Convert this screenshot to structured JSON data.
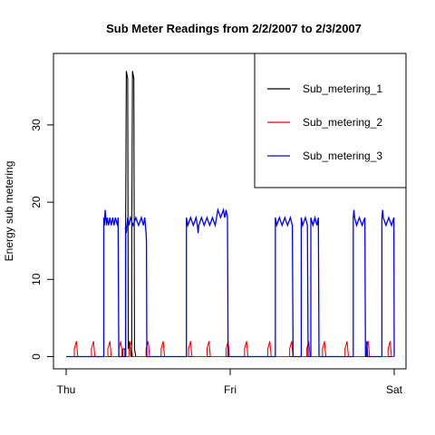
{
  "chart_data": {
    "type": "line",
    "title": "Sub Meter Readings from 2/2/2007 to 2/3/2007",
    "xlabel": "",
    "ylabel": "Energy sub metering",
    "x_ticks": [
      {
        "value": 0,
        "label": "Thu"
      },
      {
        "value": 24,
        "label": "Fri"
      },
      {
        "value": 48,
        "label": "Sat"
      }
    ],
    "x_unit": "hours since Thu 00:00",
    "xlim": [
      0,
      48
    ],
    "y_ticks": [
      0,
      10,
      20,
      30
    ],
    "ylim": [
      0,
      38
    ],
    "legend_position": "top-right",
    "grid": false,
    "series": [
      {
        "name": "Sub_metering_1",
        "color": "#000000",
        "points": [
          [
            0,
            0
          ],
          [
            8.3,
            0
          ],
          [
            8.3,
            1
          ],
          [
            8.6,
            1
          ],
          [
            8.6,
            0
          ],
          [
            8.7,
            0
          ],
          [
            8.7,
            16
          ],
          [
            8.8,
            37
          ],
          [
            9.0,
            36
          ],
          [
            9.1,
            1
          ],
          [
            9.2,
            2
          ],
          [
            9.4,
            1
          ],
          [
            9.5,
            0
          ],
          [
            9.6,
            0
          ],
          [
            9.6,
            16
          ],
          [
            9.7,
            37
          ],
          [
            9.9,
            36
          ],
          [
            10.0,
            1
          ],
          [
            10.2,
            0
          ],
          [
            48,
            0
          ]
        ]
      },
      {
        "name": "Sub_metering_2",
        "color": "#ff0000",
        "points": [
          [
            0,
            0
          ],
          [
            1.2,
            0
          ],
          [
            1.2,
            1
          ],
          [
            1.5,
            2
          ],
          [
            1.6,
            1
          ],
          [
            1.7,
            0
          ],
          [
            3.7,
            0
          ],
          [
            3.7,
            1
          ],
          [
            4.0,
            2
          ],
          [
            4.1,
            1
          ],
          [
            4.2,
            0
          ],
          [
            6.1,
            0
          ],
          [
            6.1,
            1
          ],
          [
            6.4,
            2
          ],
          [
            6.5,
            1
          ],
          [
            6.6,
            0
          ],
          [
            7.7,
            0
          ],
          [
            7.7,
            1
          ],
          [
            8.0,
            2
          ],
          [
            8.1,
            1
          ],
          [
            8.2,
            0
          ],
          [
            9.2,
            0
          ],
          [
            9.2,
            1
          ],
          [
            9.5,
            2
          ],
          [
            9.6,
            1
          ],
          [
            9.7,
            0
          ],
          [
            11.7,
            0
          ],
          [
            11.7,
            1
          ],
          [
            12.0,
            2
          ],
          [
            12.1,
            1
          ],
          [
            12.2,
            0
          ],
          [
            13.9,
            0
          ],
          [
            13.9,
            1
          ],
          [
            14.2,
            2
          ],
          [
            14.3,
            1
          ],
          [
            14.4,
            0
          ],
          [
            17.9,
            0
          ],
          [
            17.9,
            1
          ],
          [
            18.2,
            2
          ],
          [
            18.3,
            1
          ],
          [
            18.4,
            0
          ],
          [
            20.6,
            0
          ],
          [
            20.6,
            1
          ],
          [
            20.9,
            2
          ],
          [
            21.0,
            1
          ],
          [
            21.1,
            0
          ],
          [
            23.4,
            0
          ],
          [
            23.4,
            1
          ],
          [
            23.7,
            2
          ],
          [
            23.8,
            1
          ],
          [
            23.9,
            0
          ],
          [
            26.1,
            0
          ],
          [
            26.1,
            1
          ],
          [
            26.4,
            2
          ],
          [
            26.5,
            1
          ],
          [
            26.6,
            0
          ],
          [
            29.5,
            0
          ],
          [
            29.5,
            1
          ],
          [
            29.8,
            2
          ],
          [
            29.9,
            1
          ],
          [
            30.0,
            0
          ],
          [
            32.7,
            0
          ],
          [
            32.7,
            1
          ],
          [
            33.0,
            2
          ],
          [
            33.1,
            1
          ],
          [
            33.2,
            0
          ],
          [
            35.2,
            0
          ],
          [
            35.2,
            1
          ],
          [
            35.5,
            2
          ],
          [
            35.6,
            1
          ],
          [
            35.7,
            0
          ],
          [
            37.5,
            0
          ],
          [
            37.5,
            1
          ],
          [
            37.8,
            2
          ],
          [
            37.9,
            1
          ],
          [
            38.0,
            0
          ],
          [
            40.8,
            0
          ],
          [
            40.8,
            1
          ],
          [
            41.1,
            2
          ],
          [
            41.2,
            1
          ],
          [
            41.3,
            0
          ],
          [
            43.9,
            0
          ],
          [
            43.9,
            1
          ],
          [
            44.2,
            2
          ],
          [
            44.3,
            1
          ],
          [
            44.4,
            0
          ],
          [
            47.1,
            0
          ],
          [
            47.1,
            1
          ],
          [
            47.4,
            2
          ],
          [
            47.5,
            1
          ],
          [
            47.6,
            0
          ],
          [
            48,
            0
          ]
        ]
      },
      {
        "name": "Sub_metering_3",
        "color": "#0000ff",
        "points": [
          [
            0,
            0
          ],
          [
            5.5,
            0
          ],
          [
            5.5,
            18
          ],
          [
            5.6,
            17
          ],
          [
            5.7,
            19
          ],
          [
            5.8,
            18
          ],
          [
            5.9,
            17
          ],
          [
            6.0,
            18
          ],
          [
            6.2,
            17
          ],
          [
            6.4,
            18
          ],
          [
            6.6,
            17
          ],
          [
            6.8,
            18
          ],
          [
            7.0,
            17
          ],
          [
            7.2,
            18
          ],
          [
            7.5,
            17
          ],
          [
            7.6,
            18
          ],
          [
            7.7,
            0
          ],
          [
            8.7,
            0
          ],
          [
            8.7,
            17
          ],
          [
            8.8,
            16
          ],
          [
            9.0,
            18
          ],
          [
            9.2,
            17
          ],
          [
            9.4,
            18
          ],
          [
            9.8,
            17
          ],
          [
            10.2,
            18
          ],
          [
            10.6,
            17
          ],
          [
            11.0,
            18
          ],
          [
            11.3,
            17
          ],
          [
            11.5,
            18
          ],
          [
            11.7,
            16
          ],
          [
            11.75,
            15
          ],
          [
            11.8,
            0
          ],
          [
            17.6,
            0
          ],
          [
            17.6,
            18
          ],
          [
            17.8,
            17
          ],
          [
            18.2,
            18
          ],
          [
            18.6,
            17
          ],
          [
            19.0,
            18
          ],
          [
            19.2,
            17
          ],
          [
            19.3,
            16
          ],
          [
            19.4,
            17
          ],
          [
            19.8,
            18
          ],
          [
            20.2,
            17
          ],
          [
            20.6,
            18
          ],
          [
            21.0,
            17
          ],
          [
            21.4,
            18
          ],
          [
            21.8,
            17
          ],
          [
            22.2,
            19
          ],
          [
            22.6,
            18
          ],
          [
            23.0,
            19
          ],
          [
            23.2,
            18
          ],
          [
            23.4,
            19
          ],
          [
            23.6,
            18
          ],
          [
            23.7,
            0
          ],
          [
            30.6,
            0
          ],
          [
            30.6,
            18
          ],
          [
            30.8,
            17
          ],
          [
            31.2,
            18
          ],
          [
            31.6,
            17
          ],
          [
            32.0,
            18
          ],
          [
            32.4,
            17
          ],
          [
            32.8,
            18
          ],
          [
            33.1,
            17
          ],
          [
            33.2,
            0
          ],
          [
            34.4,
            0
          ],
          [
            34.4,
            18
          ],
          [
            34.6,
            17
          ],
          [
            35.0,
            18
          ],
          [
            35.3,
            17
          ],
          [
            35.4,
            0
          ],
          [
            35.8,
            0
          ],
          [
            35.8,
            18
          ],
          [
            36.1,
            17
          ],
          [
            36.4,
            18
          ],
          [
            36.7,
            17
          ],
          [
            36.9,
            18
          ],
          [
            37.0,
            0
          ],
          [
            42.0,
            0
          ],
          [
            42.0,
            18
          ],
          [
            42.1,
            19
          ],
          [
            42.2,
            18
          ],
          [
            42.5,
            17
          ],
          [
            42.9,
            18
          ],
          [
            43.3,
            17
          ],
          [
            43.7,
            18
          ],
          [
            43.8,
            0
          ],
          [
            44.0,
            0
          ],
          [
            44.0,
            2
          ],
          [
            44.1,
            0
          ],
          [
            46.2,
            0
          ],
          [
            46.2,
            18
          ],
          [
            46.3,
            19
          ],
          [
            46.4,
            18
          ],
          [
            46.8,
            17
          ],
          [
            47.2,
            18
          ],
          [
            47.6,
            17
          ],
          [
            47.95,
            18
          ],
          [
            48,
            0
          ]
        ]
      }
    ]
  }
}
